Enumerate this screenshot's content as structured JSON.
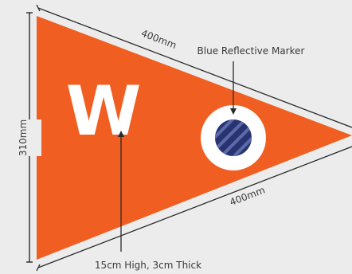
{
  "diagram": {
    "letter": "W",
    "dimensions": {
      "height_label": "310mm",
      "top_edge_label": "400mm",
      "bottom_edge_label": "400mm"
    },
    "callouts": {
      "marker_label": "Blue Reflective Marker",
      "letter_label": "15cm High, 3cm Thick"
    }
  },
  "colors": {
    "flag": "#f15e22",
    "background": "#ececec",
    "white": "#ffffff",
    "marker_blue": "#2a3372",
    "marker_stripe": "#5b6aa8",
    "dimension_line": "#2a2a2a"
  }
}
